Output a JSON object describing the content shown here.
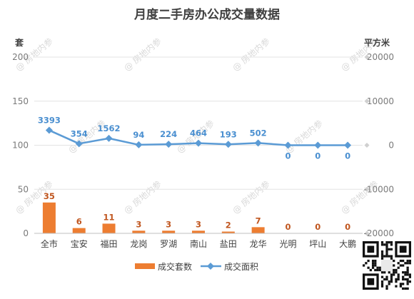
{
  "chart_data": {
    "type": "bar",
    "title": "月度二手房办公成交量数据",
    "categories": [
      "全市",
      "宝安",
      "福田",
      "龙岗",
      "罗湖",
      "南山",
      "盐田",
      "龙华",
      "光明",
      "坪山",
      "大鹏"
    ],
    "series": [
      {
        "name": "成交套数",
        "type": "bar",
        "axis": "left",
        "color": "#ed7d31",
        "values": [
          35,
          6,
          11,
          3,
          3,
          3,
          2,
          7,
          0,
          0,
          0
        ]
      },
      {
        "name": "成交面积",
        "type": "line",
        "axis": "right",
        "color": "#5b9bd5",
        "values": [
          3393,
          354,
          1562,
          94,
          224,
          464,
          193,
          502,
          0,
          0,
          0
        ]
      }
    ],
    "ylabel_left": "套",
    "ylabel_right": "平方米",
    "ylim_left": [
      0,
      200
    ],
    "yticks_left": [
      0,
      50,
      100,
      150,
      200
    ],
    "ylim_right": [
      -20000,
      20000
    ],
    "yticks_right": [
      -20000,
      -10000,
      0,
      10000,
      20000
    ],
    "grid": true,
    "legend_position": "bottom"
  },
  "watermark": "@ 房地内参",
  "colors": {
    "bar": "#ed7d31",
    "line": "#5b9bd5",
    "bar_label": "#c0561f",
    "line_label": "#4a8fd0"
  }
}
